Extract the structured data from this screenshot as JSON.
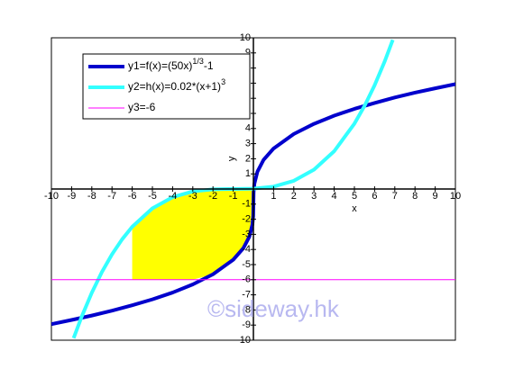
{
  "chart_data": {
    "type": "line",
    "x_label": "x",
    "y_label": "y",
    "watermark": "©sideway.hk",
    "xlim": [
      -10,
      10
    ],
    "ylim": [
      -10,
      10
    ],
    "xticks": [
      -10,
      -9,
      -8,
      -7,
      -6,
      -5,
      -4,
      -3,
      -2,
      -1,
      1,
      2,
      3,
      4,
      5,
      6,
      7,
      8,
      9,
      10
    ],
    "yticks": [
      -10,
      -9,
      -8,
      -7,
      -6,
      -5,
      -4,
      -3,
      -2,
      -1,
      1,
      2,
      3,
      4,
      5,
      6,
      7,
      8,
      9,
      10
    ],
    "shaded_region": {
      "x_from": -6,
      "x_to": 0,
      "color": "#ffff00"
    },
    "series": [
      {
        "name": "y1=f(x)=(50x)",
        "name_sup": "1/3",
        "name_after": "-1",
        "color": "#0000cc",
        "width": 4,
        "x": [
          -10,
          -9,
          -8,
          -7,
          -6,
          -5,
          -4,
          -3,
          -2,
          -1,
          -0.5,
          -0.2,
          -0.05,
          -0.01,
          0,
          0.01,
          0.05,
          0.2,
          0.5,
          1,
          2,
          3,
          4,
          5,
          6,
          7,
          8,
          9,
          10
        ],
        "values": [
          -8.94,
          -8.66,
          -8.37,
          -8.05,
          -7.69,
          -7.3,
          -6.85,
          -6.31,
          -5.64,
          -4.68,
          -3.92,
          -3.15,
          -2.36,
          -1.79,
          -1,
          -0.21,
          0.36,
          1.15,
          1.92,
          2.68,
          3.64,
          4.31,
          4.85,
          5.3,
          5.69,
          6.05,
          6.37,
          6.66,
          6.94
        ]
      },
      {
        "name": "y2=h(x)=0.02*(x+1)",
        "name_sup": "3",
        "color": "#33ffff",
        "width": 4,
        "x": [
          -8.9,
          -8.5,
          -8,
          -7.5,
          -7,
          -6.5,
          -6,
          -5,
          -4,
          -3,
          -2,
          -1,
          0,
          1,
          2,
          3,
          4,
          5,
          5.5,
          6,
          6.5,
          6.9
        ],
        "values": [
          -9.86,
          -8.44,
          -6.86,
          -5.49,
          -4.32,
          -3.33,
          -2.5,
          -1.28,
          -0.54,
          -0.16,
          -0.02,
          0,
          0.02,
          0.16,
          0.54,
          1.28,
          2.5,
          4.32,
          5.49,
          6.86,
          8.44,
          9.86
        ]
      },
      {
        "name": "y3=-6",
        "color": "#ff00ff",
        "width": 1,
        "x": [
          -10,
          10
        ],
        "values": [
          -6,
          -6
        ]
      }
    ]
  }
}
